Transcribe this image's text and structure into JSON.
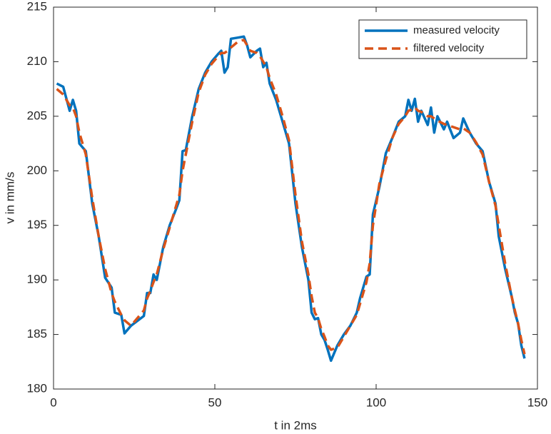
{
  "chart_data": {
    "type": "line",
    "xlabel": "t in 2ms",
    "ylabel": "v in mm/s",
    "x": [
      1,
      3,
      5,
      6,
      7,
      8,
      10,
      12,
      14,
      16,
      18,
      19,
      21,
      22,
      24,
      28,
      29,
      30,
      31,
      32,
      34,
      36,
      38,
      39,
      40,
      41,
      43,
      45,
      47,
      49,
      51,
      52,
      53,
      54,
      55,
      57,
      59,
      60,
      61,
      63,
      64,
      65,
      66,
      67,
      69,
      71,
      73,
      75,
      77,
      79,
      80,
      81,
      82,
      83,
      84,
      85,
      86,
      88,
      90,
      92,
      94,
      95,
      97,
      98,
      99,
      101,
      103,
      105,
      107,
      109,
      110,
      111,
      112,
      113,
      114,
      116,
      117,
      118,
      119,
      121,
      122,
      124,
      126,
      127,
      129,
      131,
      133,
      135,
      137,
      138,
      140,
      142,
      143,
      144,
      145,
      146
    ],
    "series": [
      {
        "name": "measured velocity",
        "color": "#0072BD",
        "dash": false,
        "values": [
          208,
          207.7,
          205.5,
          206.5,
          205.5,
          202.5,
          201.8,
          197,
          194,
          190.2,
          189.3,
          187,
          186.8,
          185.1,
          185.8,
          186.7,
          188.8,
          188.8,
          190.5,
          190,
          193,
          195,
          196.5,
          197.3,
          201.8,
          201.9,
          205,
          207.5,
          209,
          210,
          210.7,
          211,
          209,
          209.5,
          212.1,
          212.2,
          212.3,
          211.5,
          210.4,
          211,
          211.2,
          209.5,
          209.9,
          208,
          206.5,
          204.5,
          202.5,
          197,
          193,
          190,
          187,
          186.4,
          186.5,
          185,
          184.5,
          183.6,
          182.6,
          184,
          185,
          185.8,
          187,
          188.3,
          190.3,
          190.5,
          196,
          198.5,
          201.6,
          203,
          204.5,
          205,
          206.5,
          205.5,
          206.6,
          204.5,
          205.5,
          204.2,
          205.8,
          203.5,
          205,
          203.8,
          204.5,
          203,
          203.5,
          204.8,
          203.5,
          202.5,
          201.8,
          199,
          197,
          194,
          191,
          188.5,
          187,
          186,
          184,
          182.8
        ]
      },
      {
        "name": "filtered velocity",
        "color": "#D95319",
        "dash": true,
        "values": [
          207.5,
          207,
          206,
          205.8,
          205,
          203.5,
          201.5,
          197.5,
          194,
          191,
          188.8,
          188,
          186.8,
          186.3,
          185.8,
          187.2,
          188.3,
          189,
          189.8,
          190.5,
          192.8,
          194.8,
          196.8,
          197.8,
          200,
          201.5,
          204.5,
          207.2,
          208.8,
          209.8,
          210.5,
          210.8,
          210.8,
          211,
          211.3,
          211.8,
          212,
          211.5,
          211,
          210.8,
          210.5,
          210,
          209.5,
          208.5,
          207,
          205,
          202.8,
          197.8,
          193.5,
          190.5,
          188.5,
          187,
          186.5,
          185.5,
          184.8,
          184,
          183.6,
          183.8,
          184.8,
          185.8,
          186.8,
          187.8,
          189.8,
          191.5,
          195,
          198.8,
          201,
          203,
          204.3,
          205,
          205.5,
          205.6,
          205.8,
          205.5,
          205.4,
          205,
          205,
          204.8,
          204.6,
          204.3,
          204.2,
          204,
          203.8,
          203.9,
          203.5,
          202.6,
          201.5,
          199,
          196.8,
          195,
          191.5,
          188.5,
          187.2,
          186,
          184.5,
          183.2
        ]
      }
    ],
    "xlim": [
      0,
      150
    ],
    "xticks": [
      0,
      50,
      100,
      150
    ],
    "ylim": [
      180,
      215
    ],
    "yticks": [
      180,
      185,
      190,
      195,
      200,
      205,
      210,
      215
    ],
    "grid": false,
    "legend": "northeast"
  }
}
